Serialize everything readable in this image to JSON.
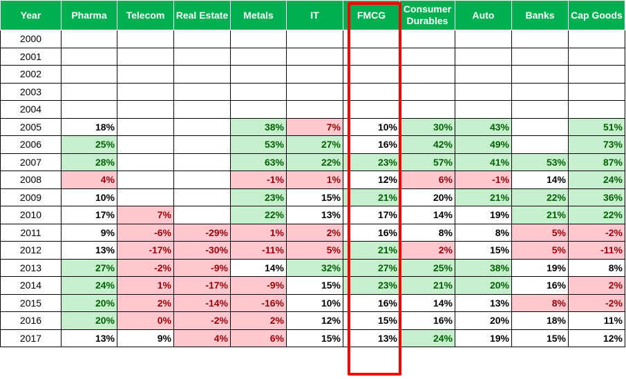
{
  "table": {
    "columns": [
      "Year",
      "Pharma",
      "Telecom",
      "Real Estate",
      "Metals",
      "IT",
      "FMCG",
      "Consumer Durables",
      "Auto",
      "Banks",
      "Cap Goods"
    ],
    "rows": [
      {
        "year": "2000",
        "cells": [
          {
            "v": "",
            "s": ""
          },
          {
            "v": "",
            "s": ""
          },
          {
            "v": "",
            "s": ""
          },
          {
            "v": "",
            "s": ""
          },
          {
            "v": "",
            "s": ""
          },
          {
            "v": "",
            "s": ""
          },
          {
            "v": "",
            "s": ""
          },
          {
            "v": "",
            "s": ""
          },
          {
            "v": "",
            "s": ""
          },
          {
            "v": "",
            "s": ""
          }
        ]
      },
      {
        "year": "2001",
        "cells": [
          {
            "v": "",
            "s": ""
          },
          {
            "v": "",
            "s": ""
          },
          {
            "v": "",
            "s": ""
          },
          {
            "v": "",
            "s": ""
          },
          {
            "v": "",
            "s": ""
          },
          {
            "v": "",
            "s": ""
          },
          {
            "v": "",
            "s": ""
          },
          {
            "v": "",
            "s": ""
          },
          {
            "v": "",
            "s": ""
          },
          {
            "v": "",
            "s": ""
          }
        ]
      },
      {
        "year": "2002",
        "cells": [
          {
            "v": "",
            "s": ""
          },
          {
            "v": "",
            "s": ""
          },
          {
            "v": "",
            "s": ""
          },
          {
            "v": "",
            "s": ""
          },
          {
            "v": "",
            "s": ""
          },
          {
            "v": "",
            "s": ""
          },
          {
            "v": "",
            "s": ""
          },
          {
            "v": "",
            "s": ""
          },
          {
            "v": "",
            "s": ""
          },
          {
            "v": "",
            "s": ""
          }
        ]
      },
      {
        "year": "2003",
        "cells": [
          {
            "v": "",
            "s": ""
          },
          {
            "v": "",
            "s": ""
          },
          {
            "v": "",
            "s": ""
          },
          {
            "v": "",
            "s": ""
          },
          {
            "v": "",
            "s": ""
          },
          {
            "v": "",
            "s": ""
          },
          {
            "v": "",
            "s": ""
          },
          {
            "v": "",
            "s": ""
          },
          {
            "v": "",
            "s": ""
          },
          {
            "v": "",
            "s": ""
          }
        ]
      },
      {
        "year": "2004",
        "cells": [
          {
            "v": "",
            "s": ""
          },
          {
            "v": "",
            "s": ""
          },
          {
            "v": "",
            "s": ""
          },
          {
            "v": "",
            "s": ""
          },
          {
            "v": "",
            "s": ""
          },
          {
            "v": "",
            "s": ""
          },
          {
            "v": "",
            "s": ""
          },
          {
            "v": "",
            "s": ""
          },
          {
            "v": "",
            "s": ""
          },
          {
            "v": "",
            "s": ""
          }
        ]
      },
      {
        "year": "2005",
        "cells": [
          {
            "v": "18%",
            "s": "bold"
          },
          {
            "v": "",
            "s": ""
          },
          {
            "v": "",
            "s": ""
          },
          {
            "v": "38%",
            "s": "pos"
          },
          {
            "v": "7%",
            "s": "neg"
          },
          {
            "v": "10%",
            "s": "bold"
          },
          {
            "v": "30%",
            "s": "pos"
          },
          {
            "v": "43%",
            "s": "pos"
          },
          {
            "v": "",
            "s": ""
          },
          {
            "v": "51%",
            "s": "pos"
          }
        ]
      },
      {
        "year": "2006",
        "cells": [
          {
            "v": "25%",
            "s": "pos"
          },
          {
            "v": "",
            "s": ""
          },
          {
            "v": "",
            "s": ""
          },
          {
            "v": "53%",
            "s": "pos"
          },
          {
            "v": "27%",
            "s": "pos"
          },
          {
            "v": "16%",
            "s": "bold"
          },
          {
            "v": "42%",
            "s": "pos"
          },
          {
            "v": "49%",
            "s": "pos"
          },
          {
            "v": "",
            "s": ""
          },
          {
            "v": "73%",
            "s": "pos"
          }
        ]
      },
      {
        "year": "2007",
        "cells": [
          {
            "v": "28%",
            "s": "pos"
          },
          {
            "v": "",
            "s": ""
          },
          {
            "v": "",
            "s": ""
          },
          {
            "v": "63%",
            "s": "pos"
          },
          {
            "v": "22%",
            "s": "pos"
          },
          {
            "v": "23%",
            "s": "pos"
          },
          {
            "v": "57%",
            "s": "pos"
          },
          {
            "v": "41%",
            "s": "pos"
          },
          {
            "v": "53%",
            "s": "pos"
          },
          {
            "v": "87%",
            "s": "pos"
          }
        ]
      },
      {
        "year": "2008",
        "cells": [
          {
            "v": "4%",
            "s": "neg"
          },
          {
            "v": "",
            "s": ""
          },
          {
            "v": "",
            "s": ""
          },
          {
            "v": "-1%",
            "s": "neg"
          },
          {
            "v": "1%",
            "s": "neg"
          },
          {
            "v": "12%",
            "s": "bold"
          },
          {
            "v": "6%",
            "s": "neg"
          },
          {
            "v": "-1%",
            "s": "neg"
          },
          {
            "v": "14%",
            "s": "bold"
          },
          {
            "v": "24%",
            "s": "pos"
          }
        ]
      },
      {
        "year": "2009",
        "cells": [
          {
            "v": "10%",
            "s": "bold"
          },
          {
            "v": "",
            "s": ""
          },
          {
            "v": "",
            "s": ""
          },
          {
            "v": "23%",
            "s": "pos"
          },
          {
            "v": "15%",
            "s": "bold"
          },
          {
            "v": "21%",
            "s": "pos"
          },
          {
            "v": "20%",
            "s": "bold"
          },
          {
            "v": "21%",
            "s": "pos"
          },
          {
            "v": "22%",
            "s": "pos"
          },
          {
            "v": "36%",
            "s": "pos"
          }
        ]
      },
      {
        "year": "2010",
        "cells": [
          {
            "v": "17%",
            "s": "bold"
          },
          {
            "v": "7%",
            "s": "neg"
          },
          {
            "v": "",
            "s": ""
          },
          {
            "v": "22%",
            "s": "pos"
          },
          {
            "v": "13%",
            "s": "bold"
          },
          {
            "v": "17%",
            "s": "bold"
          },
          {
            "v": "14%",
            "s": "bold"
          },
          {
            "v": "19%",
            "s": "bold"
          },
          {
            "v": "21%",
            "s": "pos"
          },
          {
            "v": "22%",
            "s": "pos"
          }
        ]
      },
      {
        "year": "2011",
        "cells": [
          {
            "v": "9%",
            "s": "bold"
          },
          {
            "v": "-6%",
            "s": "neg"
          },
          {
            "v": "-29%",
            "s": "neg"
          },
          {
            "v": "1%",
            "s": "neg"
          },
          {
            "v": "2%",
            "s": "neg"
          },
          {
            "v": "16%",
            "s": "bold"
          },
          {
            "v": "8%",
            "s": "bold"
          },
          {
            "v": "8%",
            "s": "bold"
          },
          {
            "v": "5%",
            "s": "neg"
          },
          {
            "v": "-2%",
            "s": "neg"
          }
        ]
      },
      {
        "year": "2012",
        "cells": [
          {
            "v": "13%",
            "s": "bold"
          },
          {
            "v": "-17%",
            "s": "neg"
          },
          {
            "v": "-30%",
            "s": "neg"
          },
          {
            "v": "-11%",
            "s": "neg"
          },
          {
            "v": "5%",
            "s": "neg"
          },
          {
            "v": "21%",
            "s": "pos"
          },
          {
            "v": "2%",
            "s": "neg"
          },
          {
            "v": "15%",
            "s": "bold"
          },
          {
            "v": "5%",
            "s": "neg"
          },
          {
            "v": "-11%",
            "s": "neg"
          }
        ]
      },
      {
        "year": "2013",
        "cells": [
          {
            "v": "27%",
            "s": "pos"
          },
          {
            "v": "-2%",
            "s": "neg"
          },
          {
            "v": "-9%",
            "s": "neg"
          },
          {
            "v": "14%",
            "s": "bold"
          },
          {
            "v": "32%",
            "s": "pos"
          },
          {
            "v": "27%",
            "s": "pos"
          },
          {
            "v": "25%",
            "s": "pos"
          },
          {
            "v": "38%",
            "s": "pos"
          },
          {
            "v": "19%",
            "s": "bold"
          },
          {
            "v": "8%",
            "s": "bold"
          }
        ]
      },
      {
        "year": "2014",
        "cells": [
          {
            "v": "24%",
            "s": "pos"
          },
          {
            "v": "1%",
            "s": "neg"
          },
          {
            "v": "-17%",
            "s": "neg"
          },
          {
            "v": "-9%",
            "s": "neg"
          },
          {
            "v": "15%",
            "s": "bold"
          },
          {
            "v": "23%",
            "s": "pos"
          },
          {
            "v": "21%",
            "s": "pos"
          },
          {
            "v": "20%",
            "s": "pos"
          },
          {
            "v": "16%",
            "s": "bold"
          },
          {
            "v": "2%",
            "s": "neg"
          }
        ]
      },
      {
        "year": "2015",
        "cells": [
          {
            "v": "20%",
            "s": "pos"
          },
          {
            "v": "2%",
            "s": "neg"
          },
          {
            "v": "-14%",
            "s": "neg"
          },
          {
            "v": "-16%",
            "s": "neg"
          },
          {
            "v": "10%",
            "s": "bold"
          },
          {
            "v": "16%",
            "s": "bold"
          },
          {
            "v": "14%",
            "s": "bold"
          },
          {
            "v": "13%",
            "s": "bold"
          },
          {
            "v": "8%",
            "s": "neg"
          },
          {
            "v": "-2%",
            "s": "neg"
          }
        ]
      },
      {
        "year": "2016",
        "cells": [
          {
            "v": "20%",
            "s": "pos"
          },
          {
            "v": "0%",
            "s": "neg"
          },
          {
            "v": "-2%",
            "s": "neg"
          },
          {
            "v": "2%",
            "s": "neg"
          },
          {
            "v": "12%",
            "s": "bold"
          },
          {
            "v": "15%",
            "s": "bold"
          },
          {
            "v": "16%",
            "s": "bold"
          },
          {
            "v": "20%",
            "s": "bold"
          },
          {
            "v": "18%",
            "s": "bold"
          },
          {
            "v": "11%",
            "s": "bold"
          }
        ]
      },
      {
        "year": "2017",
        "cells": [
          {
            "v": "13%",
            "s": "bold"
          },
          {
            "v": "9%",
            "s": "bold"
          },
          {
            "v": "4%",
            "s": "neg"
          },
          {
            "v": "6%",
            "s": "neg"
          },
          {
            "v": "15%",
            "s": "bold"
          },
          {
            "v": "13%",
            "s": "bold"
          },
          {
            "v": "24%",
            "s": "pos"
          },
          {
            "v": "19%",
            "s": "bold"
          },
          {
            "v": "15%",
            "s": "bold"
          },
          {
            "v": "12%",
            "s": "bold"
          }
        ]
      }
    ]
  },
  "colors": {
    "header_bg": "#00b050",
    "header_text": "#ffffff",
    "positive_fill": "#c6efce",
    "positive_text": "#006100",
    "negative_fill": "#ffc7ce",
    "negative_text": "#9c0006",
    "highlight_border": "#ff0000"
  },
  "highlight": {
    "column": "FMCG"
  }
}
